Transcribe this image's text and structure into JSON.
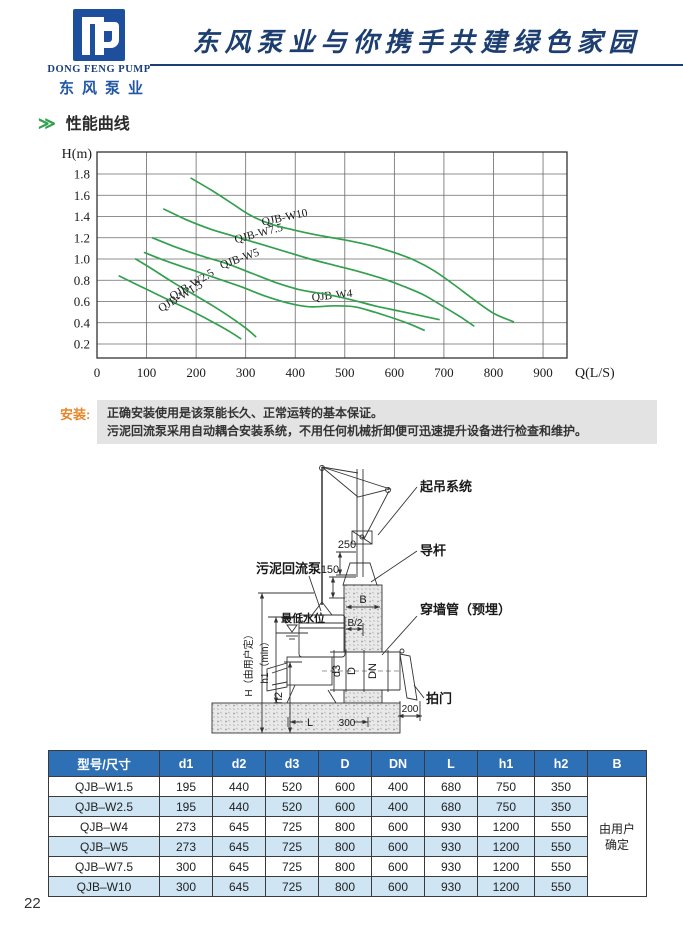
{
  "page": {
    "number": "22"
  },
  "header": {
    "logo_en": "DONG FENG PUMP",
    "logo_cn": "东风泵业",
    "slogan": "东风泵业与你携手共建绿色家园"
  },
  "section": {
    "marker": "≫",
    "title": "性能曲线"
  },
  "chart_data": {
    "type": "line",
    "title": "性能曲线",
    "xlabel": "Q(L/S)",
    "ylabel": "H(m)",
    "xlim": [
      0,
      950
    ],
    "ylim": [
      0.05,
      2.0
    ],
    "xticks": [
      0,
      100,
      200,
      300,
      400,
      500,
      600,
      700,
      800,
      900
    ],
    "yticks": [
      "0.2",
      "0.4",
      "0.6",
      "0.8",
      "1.0",
      "1.2",
      "1.4",
      "1.6",
      "1.8"
    ],
    "grid": true,
    "legend_position": "labels-on-curves",
    "curve_color": "#33a04e",
    "series": [
      {
        "name": "QJB-W1.5",
        "label_q": 172,
        "label_angle": -31,
        "points": [
          [
            45,
            0.84
          ],
          [
            80,
            0.76
          ],
          [
            120,
            0.67
          ],
          [
            160,
            0.58
          ],
          [
            200,
            0.49
          ],
          [
            240,
            0.39
          ],
          [
            270,
            0.31
          ],
          [
            290,
            0.25
          ]
        ]
      },
      {
        "name": "QJB-W2.5",
        "label_q": 195,
        "label_angle": -31,
        "points": [
          [
            78,
            1.0
          ],
          [
            110,
            0.91
          ],
          [
            150,
            0.79
          ],
          [
            190,
            0.68
          ],
          [
            230,
            0.57
          ],
          [
            270,
            0.45
          ],
          [
            300,
            0.35
          ],
          [
            320,
            0.27
          ]
        ]
      },
      {
        "name": "QJB-W4",
        "label_q": 475,
        "label_angle": -6,
        "points": [
          [
            96,
            1.06
          ],
          [
            140,
            0.98
          ],
          [
            190,
            0.9
          ],
          [
            240,
            0.82
          ],
          [
            290,
            0.74
          ],
          [
            340,
            0.65
          ],
          [
            390,
            0.58
          ],
          [
            430,
            0.55
          ],
          [
            480,
            0.56
          ],
          [
            520,
            0.55
          ],
          [
            560,
            0.5
          ],
          [
            600,
            0.44
          ],
          [
            630,
            0.39
          ],
          [
            660,
            0.33
          ]
        ]
      },
      {
        "name": "QJB-W5",
        "label_q": 290,
        "label_angle": -20,
        "points": [
          [
            112,
            1.2
          ],
          [
            160,
            1.11
          ],
          [
            210,
            1.03
          ],
          [
            260,
            0.96
          ],
          [
            310,
            0.87
          ],
          [
            360,
            0.78
          ],
          [
            410,
            0.71
          ],
          [
            460,
            0.67
          ],
          [
            510,
            0.62
          ],
          [
            560,
            0.56
          ],
          [
            610,
            0.51
          ],
          [
            650,
            0.47
          ],
          [
            690,
            0.43
          ]
        ]
      },
      {
        "name": "QJB-W7.5",
        "label_q": 328,
        "label_angle": -15,
        "points": [
          [
            135,
            1.47
          ],
          [
            180,
            1.37
          ],
          [
            230,
            1.28
          ],
          [
            280,
            1.21
          ],
          [
            330,
            1.14
          ],
          [
            380,
            1.07
          ],
          [
            430,
            1.0
          ],
          [
            480,
            0.94
          ],
          [
            530,
            0.88
          ],
          [
            580,
            0.81
          ],
          [
            620,
            0.74
          ],
          [
            660,
            0.66
          ],
          [
            700,
            0.55
          ],
          [
            735,
            0.45
          ],
          [
            760,
            0.37
          ]
        ]
      },
      {
        "name": "QJB-W10",
        "label_q": 380,
        "label_angle": -12,
        "points": [
          [
            190,
            1.76
          ],
          [
            230,
            1.65
          ],
          [
            270,
            1.53
          ],
          [
            310,
            1.41
          ],
          [
            350,
            1.33
          ],
          [
            400,
            1.27
          ],
          [
            450,
            1.22
          ],
          [
            500,
            1.18
          ],
          [
            550,
            1.13
          ],
          [
            600,
            1.06
          ],
          [
            640,
            0.99
          ],
          [
            680,
            0.89
          ],
          [
            720,
            0.76
          ],
          [
            760,
            0.62
          ],
          [
            800,
            0.49
          ],
          [
            840,
            0.41
          ]
        ]
      }
    ]
  },
  "install_note": {
    "label": "安装:",
    "line1": "正确安装使用是该泵能长久、正常运转的基本保证。",
    "line2": "污泥回流泵采用自动耦合安装系统，不用任何机械折卸便可迅速提升设备进行检查和维护。"
  },
  "diagram": {
    "labels": {
      "hoist": "起吊系统",
      "guide_rod": "导杆",
      "wall_pipe": "穿墙管（预埋）",
      "flap_valve": "拍门",
      "pump": "污泥回流泵",
      "water_level": "最低水位",
      "dim_250": "250",
      "dim_150": "150",
      "dim_200": "200",
      "dim_300": "300",
      "dim_L": "L",
      "dim_B": "B",
      "dim_B2": "B/2",
      "dim_d3": "d3",
      "dim_D": "D",
      "dim_DN": "DN",
      "dim_h2": "h2",
      "dim_h1": "h1（min）",
      "dim_H": "H（由用户定）"
    }
  },
  "table": {
    "headers": [
      "型号/尺寸",
      "d1",
      "d2",
      "d3",
      "D",
      "DN",
      "L",
      "h1",
      "h2",
      "B"
    ],
    "rows": [
      [
        "QJB–W1.5",
        "195",
        "440",
        "520",
        "600",
        "400",
        "680",
        "750",
        "350"
      ],
      [
        "QJB–W2.5",
        "195",
        "440",
        "520",
        "600",
        "400",
        "680",
        "750",
        "350"
      ],
      [
        "QJB–W4",
        "273",
        "645",
        "725",
        "800",
        "600",
        "930",
        "1200",
        "550"
      ],
      [
        "QJB–W5",
        "273",
        "645",
        "725",
        "800",
        "600",
        "930",
        "1200",
        "550"
      ],
      [
        "QJB–W7.5",
        "300",
        "645",
        "725",
        "800",
        "600",
        "930",
        "1200",
        "550"
      ],
      [
        "QJB–W10",
        "300",
        "645",
        "725",
        "800",
        "600",
        "930",
        "1200",
        "550"
      ]
    ],
    "b_merged": "由用户确定"
  },
  "colors": {
    "accent_green": "#33a04e",
    "brand_navy": "#1c3e70",
    "logo_blue": "#1d4f9c",
    "note_orange": "#e5862b",
    "table_header_bg": "#2e70b6",
    "table_alt_row_bg": "#cfe5f4"
  }
}
